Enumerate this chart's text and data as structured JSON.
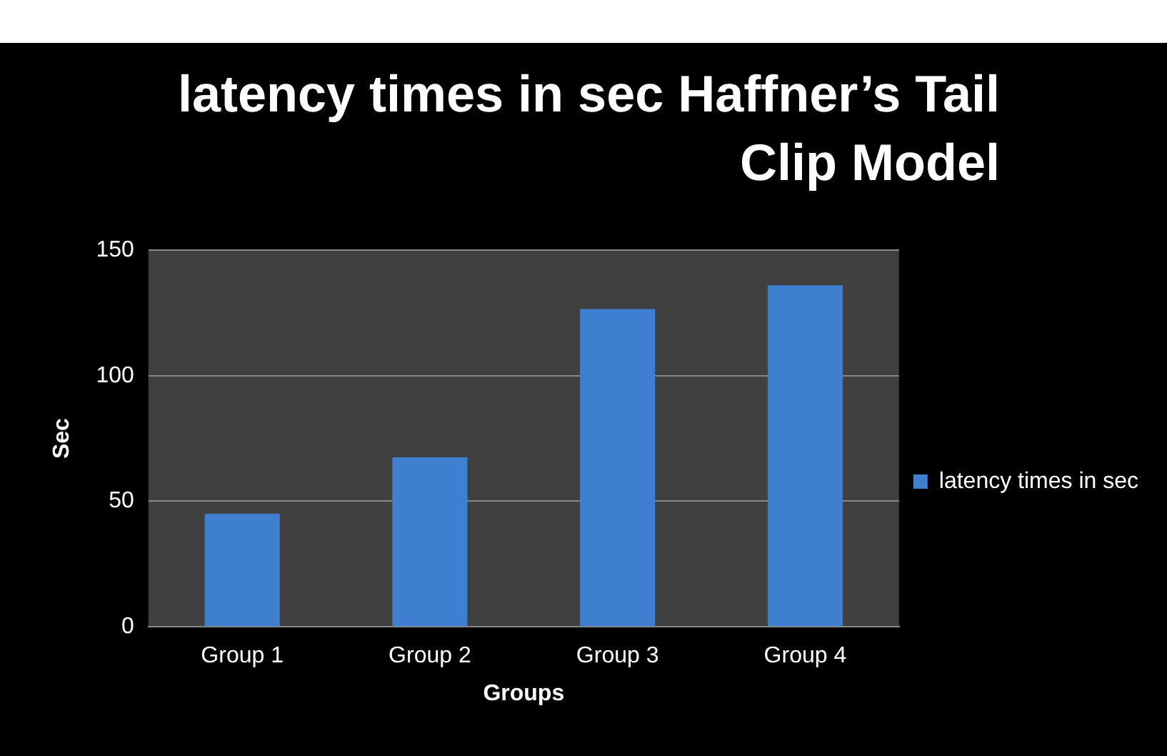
{
  "chart_data": {
    "type": "bar",
    "title": "latency times in sec Haffner’s Tail Clip Model",
    "xlabel": "Groups",
    "ylabel": "Sec",
    "categories": [
      "Group 1",
      "Group 2",
      "Group 3",
      "Group 4"
    ],
    "series": [
      {
        "name": "latency times in sec",
        "color": "#3f7fcf",
        "values": [
          45,
          67.5,
          126.5,
          136
        ]
      }
    ],
    "ylim": [
      0,
      150
    ],
    "yticks": [
      0,
      50,
      100,
      150
    ],
    "grid": "y",
    "legend": "right"
  }
}
